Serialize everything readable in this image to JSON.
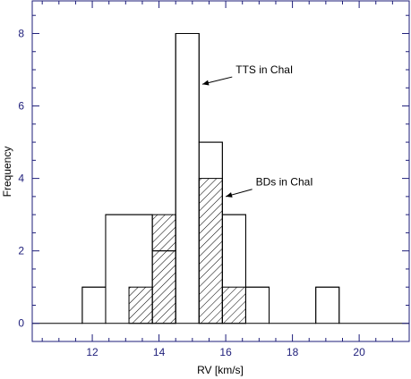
{
  "chart_data": {
    "type": "bar",
    "xlabel": "RV [km/s]",
    "ylabel": "Frequency",
    "xlim": [
      10.2,
      21.5
    ],
    "ylim": [
      -0.5,
      8.9
    ],
    "xticks": [
      12,
      14,
      16,
      18,
      20
    ],
    "yticks": [
      0,
      2,
      4,
      6,
      8
    ],
    "xtick_labels": [
      "12",
      "14",
      "16",
      "18",
      "20"
    ],
    "ytick_labels": [
      "0",
      "2",
      "4",
      "6",
      "8"
    ],
    "series": [
      {
        "name": "TTS in ChaI",
        "style": "open",
        "bins": [
          {
            "x0": 10.2,
            "x1": 11.7,
            "count": 0
          },
          {
            "x0": 11.7,
            "x1": 12.4,
            "count": 1
          },
          {
            "x0": 12.4,
            "x1": 13.8,
            "count": 3
          },
          {
            "x0": 13.8,
            "x1": 14.5,
            "count": 2
          },
          {
            "x0": 14.5,
            "x1": 15.2,
            "count": 8
          },
          {
            "x0": 15.2,
            "x1": 15.9,
            "count": 5
          },
          {
            "x0": 15.9,
            "x1": 16.6,
            "count": 3
          },
          {
            "x0": 16.6,
            "x1": 17.3,
            "count": 1
          },
          {
            "x0": 17.3,
            "x1": 18.7,
            "count": 0
          },
          {
            "x0": 18.7,
            "x1": 19.4,
            "count": 1
          },
          {
            "x0": 19.4,
            "x1": 21.5,
            "count": 0
          }
        ]
      },
      {
        "name": "BDs in ChaI",
        "style": "hatched",
        "bins": [
          {
            "x0": 13.1,
            "x1": 13.8,
            "count": 1
          },
          {
            "x0": 13.8,
            "x1": 14.5,
            "count": 3
          },
          {
            "x0": 15.2,
            "x1": 15.9,
            "count": 4
          },
          {
            "x0": 15.9,
            "x1": 16.6,
            "count": 1
          }
        ]
      }
    ],
    "annotations": [
      {
        "text": "TTS in ChaI",
        "x": 16.3,
        "y": 6.9,
        "arrow_to": [
          15.3,
          6.6
        ]
      },
      {
        "text": "BDs in ChaI",
        "x": 16.9,
        "y": 3.8,
        "arrow_to": [
          16.0,
          3.5
        ]
      }
    ],
    "grid": false,
    "legend": "none"
  },
  "colors": {
    "axis": "#1e1e7a",
    "bars": "#000000",
    "background": "#ffffff"
  }
}
